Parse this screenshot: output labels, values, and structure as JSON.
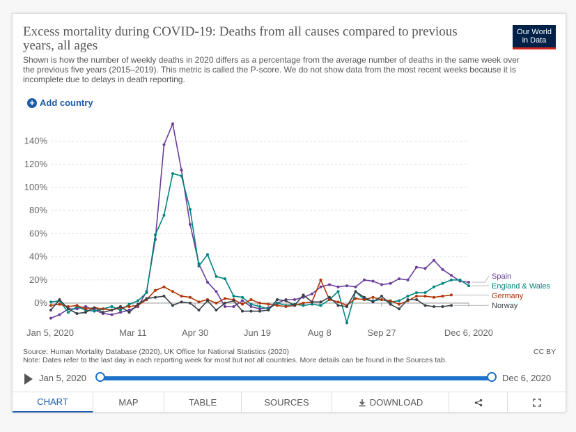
{
  "header": {
    "title": "Excess mortality during COVID-19: Deaths from all causes compared to previous years, all ages",
    "subtitle": "Shown is how the number of weekly deaths in 2020 differs as a percentage from the average number of deaths in the same week over the previous five years (2015–2019). This metric is called the P-score. We do not show data from the most recent weeks because it is incomplete due to delays in death reporting.",
    "logo_line1": "Our World",
    "logo_line2": "in Data"
  },
  "controls": {
    "add_country": "Add country"
  },
  "footer": {
    "source": "Source: Human Mortality Database (2020), UK Office for National Statistics (2020)",
    "note": "Note: Dates refer to the last day in each reporting week for most but not all countries. More details can be found in the Sources tab.",
    "license": "CC BY"
  },
  "timeline": {
    "start": "Jan 5, 2020",
    "end": "Dec 6, 2020"
  },
  "tabs": [
    {
      "label": "Chart",
      "icon": "",
      "active": true
    },
    {
      "label": "Map",
      "icon": "",
      "active": false
    },
    {
      "label": "Table",
      "icon": "",
      "active": false
    },
    {
      "label": "Sources",
      "icon": "",
      "active": false
    },
    {
      "label": "Download",
      "icon": "download-icon",
      "active": false
    },
    {
      "label": "",
      "icon": "share-icon",
      "active": false
    },
    {
      "label": "",
      "icon": "fullscreen-icon",
      "active": false
    }
  ],
  "colors": {
    "spain": "#6a3d9a",
    "england": "#00847e",
    "germany": "#b13507",
    "norway": "#38404a"
  },
  "chart_data": {
    "type": "line",
    "title": "Excess mortality during COVID-19: Deaths from all causes compared to previous years, all ages",
    "xlabel": "",
    "ylabel": "",
    "x_start": "Jan 5, 2020",
    "x_end": "Dec 6, 2020",
    "x_ticks": [
      "Jan 5, 2020",
      "Mar 11",
      "Apr 30",
      "Jun 19",
      "Aug 8",
      "Sep 27",
      "Dec 6, 2020"
    ],
    "y_ticks": [
      "0%",
      "20%",
      "40%",
      "60%",
      "80%",
      "100%",
      "120%",
      "140%"
    ],
    "ylim": [
      -20,
      160
    ],
    "grid": true,
    "legend": "right",
    "series": [
      {
        "name": "Spain",
        "color": "#6a3d9a",
        "x": [
          "2020-01-05",
          "2020-01-12",
          "2020-01-19",
          "2020-01-26",
          "2020-02-02",
          "2020-02-09",
          "2020-02-16",
          "2020-02-23",
          "2020-03-01",
          "2020-03-08",
          "2020-03-15",
          "2020-03-22",
          "2020-03-29",
          "2020-04-05",
          "2020-04-12",
          "2020-04-19",
          "2020-04-26",
          "2020-05-03",
          "2020-05-10",
          "2020-05-17",
          "2020-05-24",
          "2020-05-31",
          "2020-06-07",
          "2020-06-14",
          "2020-06-21",
          "2020-06-28",
          "2020-07-05",
          "2020-07-12",
          "2020-07-19",
          "2020-07-26",
          "2020-08-02",
          "2020-08-09",
          "2020-08-16",
          "2020-08-23",
          "2020-08-30",
          "2020-09-06",
          "2020-09-13",
          "2020-09-20",
          "2020-09-27",
          "2020-10-04",
          "2020-10-11",
          "2020-10-18",
          "2020-10-25",
          "2020-11-01",
          "2020-11-08",
          "2020-11-15",
          "2020-11-22",
          "2020-11-29",
          "2020-12-06"
        ],
        "y": [
          -13,
          -10,
          -5,
          -5,
          -3,
          -6,
          -9,
          -10,
          -8,
          -6,
          -3,
          10,
          55,
          137,
          155,
          115,
          68,
          34,
          18,
          10,
          -3,
          -3,
          2,
          -3,
          -5,
          -4,
          0,
          3,
          3,
          5,
          8,
          14,
          16,
          14,
          15,
          14,
          20,
          19,
          16,
          17,
          21,
          20,
          31,
          30,
          37,
          29,
          24,
          19,
          18
        ]
      },
      {
        "name": "England & Wales",
        "color": "#00847e",
        "x": [
          "2020-01-05",
          "2020-01-12",
          "2020-01-19",
          "2020-01-26",
          "2020-02-02",
          "2020-02-09",
          "2020-02-16",
          "2020-02-23",
          "2020-03-01",
          "2020-03-08",
          "2020-03-15",
          "2020-03-22",
          "2020-03-29",
          "2020-04-05",
          "2020-04-12",
          "2020-04-19",
          "2020-04-26",
          "2020-05-03",
          "2020-05-10",
          "2020-05-17",
          "2020-05-24",
          "2020-05-31",
          "2020-06-07",
          "2020-06-14",
          "2020-06-21",
          "2020-06-28",
          "2020-07-05",
          "2020-07-12",
          "2020-07-19",
          "2020-07-26",
          "2020-08-02",
          "2020-08-09",
          "2020-08-16",
          "2020-08-23",
          "2020-08-30",
          "2020-09-06",
          "2020-09-13",
          "2020-09-20",
          "2020-09-27",
          "2020-10-04",
          "2020-10-11",
          "2020-10-18",
          "2020-10-25",
          "2020-11-01",
          "2020-11-08",
          "2020-11-15",
          "2020-11-22",
          "2020-11-29",
          "2020-12-06"
        ],
        "y": [
          1,
          2,
          -8,
          -3,
          -6,
          -7,
          -5,
          -3,
          -6,
          -1,
          2,
          9,
          59,
          76,
          112,
          110,
          81,
          32,
          42,
          23,
          21,
          6,
          5,
          -1,
          -3,
          -5,
          0,
          -2,
          -1,
          -2,
          -1,
          -2,
          3,
          10,
          -17,
          10,
          3,
          2,
          3,
          1,
          2,
          6,
          9,
          9,
          14,
          17,
          20,
          20,
          15
        ]
      },
      {
        "name": "Germany",
        "color": "#b13507",
        "x": [
          "2020-01-05",
          "2020-01-12",
          "2020-01-19",
          "2020-01-26",
          "2020-02-02",
          "2020-02-09",
          "2020-02-16",
          "2020-02-23",
          "2020-03-01",
          "2020-03-08",
          "2020-03-15",
          "2020-03-22",
          "2020-03-29",
          "2020-04-05",
          "2020-04-12",
          "2020-04-19",
          "2020-04-26",
          "2020-05-03",
          "2020-05-10",
          "2020-05-17",
          "2020-05-24",
          "2020-05-31",
          "2020-06-07",
          "2020-06-14",
          "2020-06-21",
          "2020-06-28",
          "2020-07-05",
          "2020-07-12",
          "2020-07-19",
          "2020-07-26",
          "2020-08-02",
          "2020-08-09",
          "2020-08-16",
          "2020-08-23",
          "2020-08-30",
          "2020-09-06",
          "2020-09-13",
          "2020-09-20",
          "2020-09-27",
          "2020-10-04",
          "2020-10-11",
          "2020-10-18",
          "2020-10-25",
          "2020-11-01",
          "2020-11-08",
          "2020-11-15",
          "2020-11-22"
        ],
        "y": [
          -2,
          -1,
          -3,
          -2,
          -5,
          -4,
          -5,
          -6,
          -4,
          -3,
          -2,
          3,
          11,
          14,
          10,
          6,
          5,
          1,
          3,
          0,
          4,
          3,
          -1,
          3,
          0,
          -1,
          -2,
          -3,
          -2,
          0,
          1,
          20,
          3,
          1,
          -2,
          4,
          3,
          5,
          3,
          2,
          -1,
          2,
          6,
          6,
          5,
          6,
          7
        ]
      },
      {
        "name": "Norway",
        "color": "#38404a",
        "x": [
          "2020-01-05",
          "2020-01-12",
          "2020-01-19",
          "2020-01-26",
          "2020-02-02",
          "2020-02-09",
          "2020-02-16",
          "2020-02-23",
          "2020-03-01",
          "2020-03-08",
          "2020-03-15",
          "2020-03-22",
          "2020-03-29",
          "2020-04-05",
          "2020-04-12",
          "2020-04-19",
          "2020-04-26",
          "2020-05-03",
          "2020-05-10",
          "2020-05-17",
          "2020-05-24",
          "2020-05-31",
          "2020-06-07",
          "2020-06-14",
          "2020-06-21",
          "2020-06-28",
          "2020-07-05",
          "2020-07-12",
          "2020-07-19",
          "2020-07-26",
          "2020-08-02",
          "2020-08-09",
          "2020-08-16",
          "2020-08-23",
          "2020-08-30",
          "2020-09-06",
          "2020-09-13",
          "2020-09-20",
          "2020-09-27",
          "2020-10-04",
          "2020-10-11",
          "2020-10-18",
          "2020-10-25",
          "2020-11-01",
          "2020-11-08",
          "2020-11-15",
          "2020-11-22"
        ],
        "y": [
          -6,
          3,
          -5,
          -9,
          -8,
          -4,
          -8,
          -6,
          -3,
          -8,
          -1,
          4,
          5,
          6,
          -2,
          1,
          0,
          -6,
          2,
          -6,
          0,
          2,
          -7,
          -7,
          -7,
          -6,
          3,
          2,
          -2,
          7,
          1,
          1,
          5,
          -2,
          -3,
          10,
          5,
          1,
          6,
          -1,
          -5,
          3,
          3,
          -2,
          -3,
          -3,
          -2
        ]
      }
    ]
  }
}
